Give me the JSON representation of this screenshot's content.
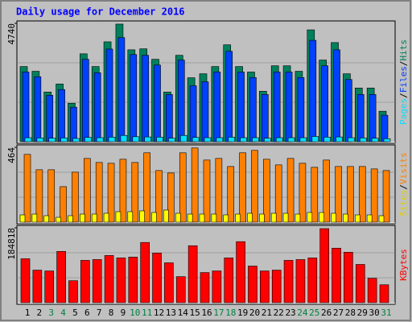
{
  "chart_data": {
    "type": "bar",
    "title": "Daily usage for December 2016",
    "categories": [
      "1",
      "2",
      "3",
      "4",
      "5",
      "6",
      "7",
      "8",
      "9",
      "10",
      "11",
      "12",
      "13",
      "14",
      "15",
      "16",
      "17",
      "18",
      "19",
      "20",
      "21",
      "22",
      "23",
      "24",
      "25",
      "26",
      "27",
      "28",
      "29",
      "30",
      "31"
    ],
    "category_colors": [
      "#000000",
      "#000000",
      "#008040",
      "#008040",
      "#000000",
      "#000000",
      "#000000",
      "#000000",
      "#000000",
      "#008040",
      "#008040",
      "#000000",
      "#000000",
      "#000000",
      "#000000",
      "#000000",
      "#008040",
      "#008040",
      "#000000",
      "#000000",
      "#000000",
      "#000000",
      "#000000",
      "#008040",
      "#008040",
      "#000000",
      "#000000",
      "#000000",
      "#000000",
      "#000000",
      "#008040"
    ],
    "legend_separator": "/",
    "panels": [
      {
        "ylim": [
          0,
          4740
        ],
        "yticks": [
          4740
        ],
        "series": [
          {
            "name": "Hits",
            "color": "#00805c",
            "values": [
              3010,
              2820,
              1990,
              2310,
              1540,
              3520,
              3010,
              4000,
              4710,
              3680,
              3720,
              3300,
              1990,
              3460,
              2560,
              2720,
              3010,
              3880,
              3010,
              2790,
              2020,
              3040,
              3040,
              2820,
              4480,
              3270,
              3970,
              2720,
              2150,
              2150,
              1220
            ]
          },
          {
            "name": "Files",
            "color": "#0040ff",
            "values": [
              2790,
              2600,
              1860,
              2090,
              1380,
              3300,
              2760,
              3710,
              4170,
              3490,
              3460,
              3070,
              1890,
              3270,
              2240,
              2400,
              2790,
              3620,
              2790,
              2570,
              1890,
              2790,
              2790,
              2570,
              4060,
              3040,
              3680,
              2490,
              1890,
              1890,
              1060
            ]
          },
          {
            "name": "Pages",
            "color": "#00e0ff",
            "values": [
              160,
              150,
              140,
              150,
              130,
              170,
              160,
              180,
              250,
              200,
              190,
              180,
              140,
              250,
              170,
              160,
              160,
              180,
              160,
              160,
              140,
              160,
              160,
              160,
              210,
              180,
              190,
              160,
              150,
              140,
              120
            ]
          }
        ]
      },
      {
        "ylim": [
          0,
          464
        ],
        "yticks": [
          464
        ],
        "series": [
          {
            "name": "Visits",
            "color": "#ff8000",
            "values": [
              420,
              325,
              325,
              220,
              310,
              395,
              370,
              365,
              390,
              370,
              430,
              320,
              305,
              430,
              460,
              385,
              395,
              345,
              430,
              445,
              390,
              355,
              395,
              365,
              340,
              385,
              345,
              345,
              345,
              330,
              320
            ]
          },
          {
            "name": "Sites",
            "color": "#ffff00",
            "values": [
              45,
              50,
              40,
              30,
              40,
              50,
              50,
              55,
              65,
              65,
              70,
              60,
              75,
              55,
              50,
              50,
              50,
              45,
              50,
              55,
              50,
              55,
              55,
              50,
              60,
              60,
              55,
              50,
              45,
              45,
              40
            ]
          }
        ]
      },
      {
        "ylim": [
          0,
          184818
        ],
        "yticks": [
          184818
        ],
        "series": [
          {
            "name": "KBytes",
            "color": "#ff0000",
            "values": [
              108480,
              80360,
              78350,
              126560,
              54240,
              104460,
              106470,
              116520,
              110490,
              112500,
              148660,
              122540,
              98440,
              64280,
              140620,
              74330,
              78350,
              110490,
              150670,
              90400,
              78350,
              80360,
              104460,
              106470,
              110490,
              182810,
              134600,
              124550,
              94420,
              60270,
              44200
            ]
          }
        ]
      }
    ]
  }
}
